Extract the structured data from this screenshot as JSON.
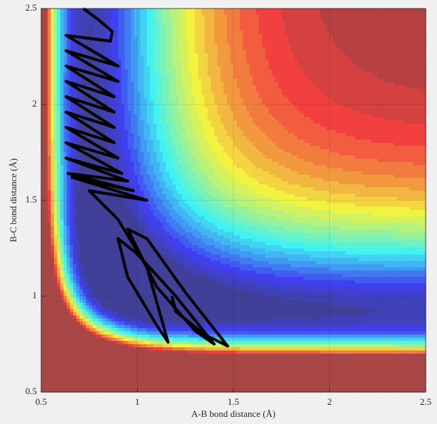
{
  "chart_data": {
    "type": "contour",
    "xlabel": "A-B bond distance (Å)",
    "ylabel": "B-C bond distance (Å)",
    "xlim": [
      0.5,
      2.5
    ],
    "ylim": [
      0.5,
      2.5
    ],
    "xticks": [
      0.5,
      1,
      1.5,
      2,
      2.5
    ],
    "yticks": [
      0.5,
      1,
      1.5,
      2,
      2.5
    ],
    "grid": true,
    "series": [
      {
        "color": "#000000",
        "x": [
          0.72,
          0.8,
          0.87,
          0.86,
          0.63,
          0.9,
          0.63,
          0.9,
          0.63,
          0.88,
          0.63,
          0.88,
          0.63,
          0.88,
          0.63,
          0.88,
          0.63,
          0.9,
          0.63,
          0.92,
          0.63,
          0.95,
          0.64,
          0.98,
          0.66,
          1.05,
          0.75,
          0.9,
          1.05,
          1.16,
          1.1,
          0.95,
          0.9,
          1.0,
          1.2,
          1.4,
          1.3,
          1.1,
          0.95,
          1.05,
          1.25,
          1.47,
          1.35,
          1.2,
          1.18
        ],
        "y": [
          2.5,
          2.44,
          2.38,
          2.33,
          2.36,
          2.2,
          2.28,
          2.12,
          2.2,
          2.04,
          2.12,
          1.96,
          2.04,
          1.88,
          1.96,
          1.8,
          1.88,
          1.72,
          1.8,
          1.64,
          1.72,
          1.6,
          1.64,
          1.55,
          1.62,
          1.5,
          1.55,
          1.4,
          1.15,
          0.76,
          0.85,
          1.1,
          1.3,
          1.22,
          1.0,
          0.75,
          0.82,
          1.05,
          1.35,
          1.3,
          1.02,
          0.74,
          0.8,
          0.92,
          1.0
        ]
      }
    ]
  }
}
